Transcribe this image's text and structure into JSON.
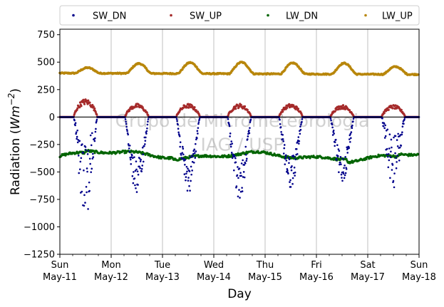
{
  "chart_data": {
    "type": "scatter",
    "xlabel": "Day",
    "ylabel_prefix": "Radiation (",
    "ylabel_unit_base": "Wm",
    "ylabel_unit_exp": "−2",
    "ylabel_suffix": ")",
    "ylim": [
      -1250,
      800
    ],
    "yticks": [
      -1250,
      -1000,
      -750,
      -500,
      -250,
      0,
      250,
      500,
      750
    ],
    "ytick_labels": [
      "−1250",
      "−1000",
      "−750",
      "−500",
      "−250",
      "0",
      "250",
      "500",
      "750"
    ],
    "xlim_days": [
      0,
      7
    ],
    "xticks": [
      {
        "day": 0,
        "dow": "Sun",
        "date": "May-11"
      },
      {
        "day": 1,
        "dow": "Mon",
        "date": "May-12"
      },
      {
        "day": 2,
        "dow": "Tue",
        "date": "May-13"
      },
      {
        "day": 3,
        "dow": "Wed",
        "date": "May-14"
      },
      {
        "day": 4,
        "dow": "Thu",
        "date": "May-15"
      },
      {
        "day": 5,
        "dow": "Fri",
        "date": "May-16"
      },
      {
        "day": 6,
        "dow": "Sat",
        "date": "May-17"
      },
      {
        "day": 7,
        "dow": "Sun",
        "date": "May-18"
      }
    ],
    "grid": "vertical",
    "zero_line": true,
    "legend_placement": "top-outside",
    "watermark": [
      "Grupo de Micrometeorologia",
      "IAG / USP"
    ],
    "daily_peaks": {
      "SW_DN": [
        -900,
        -700,
        -700,
        -780,
        -650,
        -600,
        -650
      ],
      "SW_UP": [
        150,
        110,
        110,
        110,
        110,
        100,
        100
      ],
      "LW_UP": [
        450,
        490,
        500,
        505,
        500,
        500,
        470
      ]
    },
    "series": [
      {
        "name": "SW_DN",
        "color": "#00008b",
        "night_value": 0
      },
      {
        "name": "SW_UP",
        "color": "#a52a2a",
        "night_value": 0
      },
      {
        "name": "LW_DN",
        "color": "#006400",
        "baseline": -360,
        "range": [
          -400,
          -310
        ]
      },
      {
        "name": "LW_UP",
        "color": "#b8860b",
        "baseline": 400,
        "range": [
          380,
          505
        ]
      }
    ]
  }
}
